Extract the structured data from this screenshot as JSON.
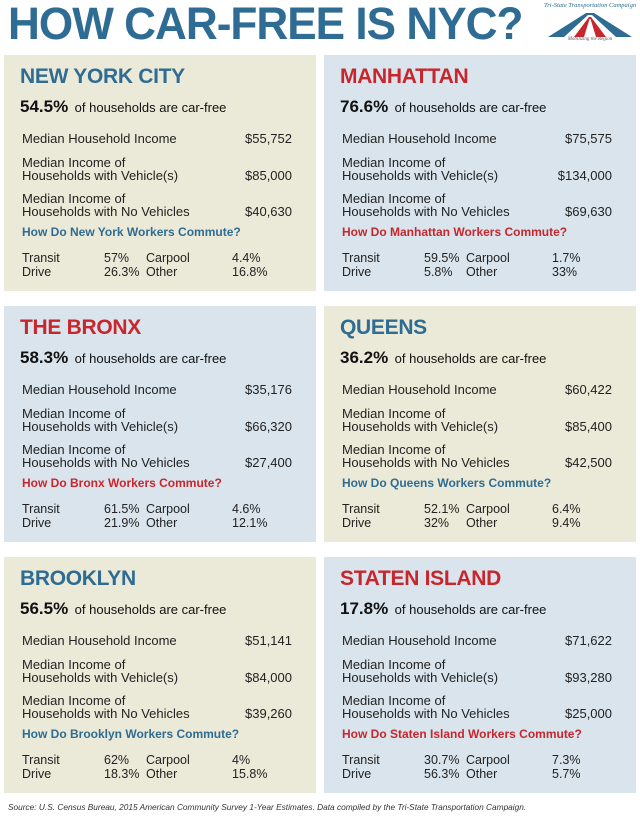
{
  "title": "HOW CAR-FREE IS NYC?",
  "logo": {
    "name": "Tri-State Transportation Campaign",
    "tagline": "Mobilizing the Region",
    "colors": [
      "#c8262d",
      "#2f6c93"
    ]
  },
  "labels": {
    "households_suffix": "of households are car-free",
    "median_income": "Median Household Income",
    "vehicle_line1": "Median Income of",
    "vehicle_line2": "Households with Vehicle(s)",
    "novehicle_line1": "Median Income of",
    "novehicle_line2": "Households with No Vehicles",
    "transit": "Transit",
    "drive": "Drive",
    "carpool": "Carpool",
    "other": "Other"
  },
  "colors": {
    "blue_title": "#2f6c93",
    "red_title": "#c8262d",
    "blue_panel": "#d9e4ec",
    "tan_panel": "#ebe9d7"
  },
  "boroughs": [
    {
      "name": "NEW YORK CITY",
      "title_color": "blue",
      "panel": "tan",
      "car_free_pct": "54.5%",
      "median_income": "$55,752",
      "vehicle_income": "$85,000",
      "novehicle_income": "$40,630",
      "question": "How Do New York Workers Commute?",
      "transit": "57%",
      "drive": "26.3%",
      "carpool": "4.4%",
      "other": "16.8%"
    },
    {
      "name": "MANHATTAN",
      "title_color": "red",
      "panel": "blue",
      "car_free_pct": "76.6%",
      "median_income": "$75,575",
      "vehicle_income": "$134,000",
      "novehicle_income": "$69,630",
      "question": "How Do Manhattan Workers Commute?",
      "transit": "59.5%",
      "drive": "5.8%",
      "carpool": "1.7%",
      "other": "33%"
    },
    {
      "name": "THE BRONX",
      "title_color": "red",
      "panel": "blue",
      "car_free_pct": "58.3%",
      "median_income": "$35,176",
      "vehicle_income": "$66,320",
      "novehicle_income": "$27,400",
      "question": "How Do Bronx Workers Commute?",
      "transit": "61.5%",
      "drive": "21.9%",
      "carpool": "4.6%",
      "other": "12.1%"
    },
    {
      "name": "QUEENS",
      "title_color": "blue",
      "panel": "tan",
      "car_free_pct": "36.2%",
      "median_income": "$60,422",
      "vehicle_income": "$85,400",
      "novehicle_income": "$42,500",
      "question": "How Do Queens Workers Commute?",
      "transit": "52.1%",
      "drive": "32%",
      "carpool": "6.4%",
      "other": "9.4%"
    },
    {
      "name": "BROOKLYN",
      "title_color": "blue",
      "panel": "tan",
      "car_free_pct": "56.5%",
      "median_income": "$51,141",
      "vehicle_income": "$84,000",
      "novehicle_income": "$39,260",
      "question": "How Do Brooklyn Workers Commute?",
      "transit": "62%",
      "drive": "18.3%",
      "carpool": "4%",
      "other": "15.8%"
    },
    {
      "name": "STATEN ISLAND",
      "title_color": "red",
      "panel": "blue",
      "car_free_pct": "17.8%",
      "median_income": "$71,622",
      "vehicle_income": "$93,280",
      "novehicle_income": "$25,000",
      "question": "How Do Staten Island Workers Commute?",
      "transit": "30.7%",
      "drive": "56.3%",
      "carpool": "7.3%",
      "other": "5.7%"
    }
  ],
  "source": "Source: U.S. Census Bureau, 2015 American Community Survey 1-Year Estimates. Data compiled by the Tri-State Transportation Campaign."
}
